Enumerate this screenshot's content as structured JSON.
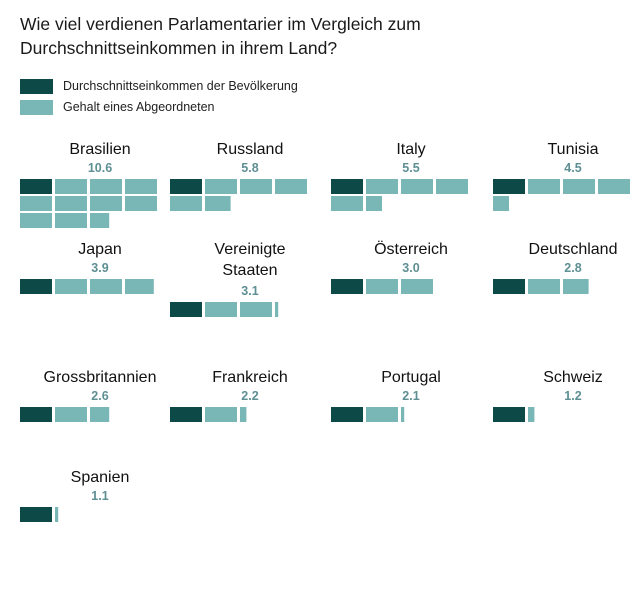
{
  "title_line1": "Wie viel verdienen Parlamentarier im Vergleich zum",
  "title_line2": "Durchschnittseinkommen in ihrem Land?",
  "legend": [
    {
      "label": "Durchschnittseinkommen der Bevölkerung",
      "color": "#0d4a47"
    },
    {
      "label": "Gehalt eines Abgeordneten",
      "color": "#78b7b5"
    }
  ],
  "chart_data": {
    "type": "waffle",
    "unit_description": "one block = average income; parliamentarian salary expressed as multiple of average income",
    "title": "Wie viel verdienen Parlamentarier im Vergleich zum Durchschnittseinkommen in ihrem Land?",
    "colors": {
      "average": "#0d4a47",
      "mp": "#78b7b5"
    },
    "categories": [
      "Brasilien",
      "Russland",
      "Italy",
      "Tunisia",
      "Japan",
      "Vereinigte Staaten",
      "Österreich",
      "Deutschland",
      "Grossbritannien",
      "Frankreich",
      "Portugal",
      "Schweiz",
      "Spanien"
    ],
    "country_lines": [
      [
        "Brasilien"
      ],
      [
        "Russland"
      ],
      [
        "Italy"
      ],
      [
        "Tunisia"
      ],
      [
        "Japan"
      ],
      [
        "Vereinigte",
        "Staaten"
      ],
      [
        "Österreich"
      ],
      [
        "Deutschland"
      ],
      [
        "Grossbritannien"
      ],
      [
        "Frankreich"
      ],
      [
        "Portugal"
      ],
      [
        "Schweiz"
      ],
      [
        "Spanien"
      ]
    ],
    "value_labels": [
      "10.6",
      "5.8",
      "5.5",
      "4.5",
      "3.9",
      "3.1",
      "3.0",
      "2.8",
      "2.6",
      "2.2",
      "2.1",
      "1.2",
      "1.1"
    ],
    "values": [
      10.6,
      5.8,
      5.5,
      4.5,
      3.9,
      3.1,
      3.0,
      2.8,
      2.6,
      2.2,
      2.1,
      1.2,
      1.1
    ]
  }
}
